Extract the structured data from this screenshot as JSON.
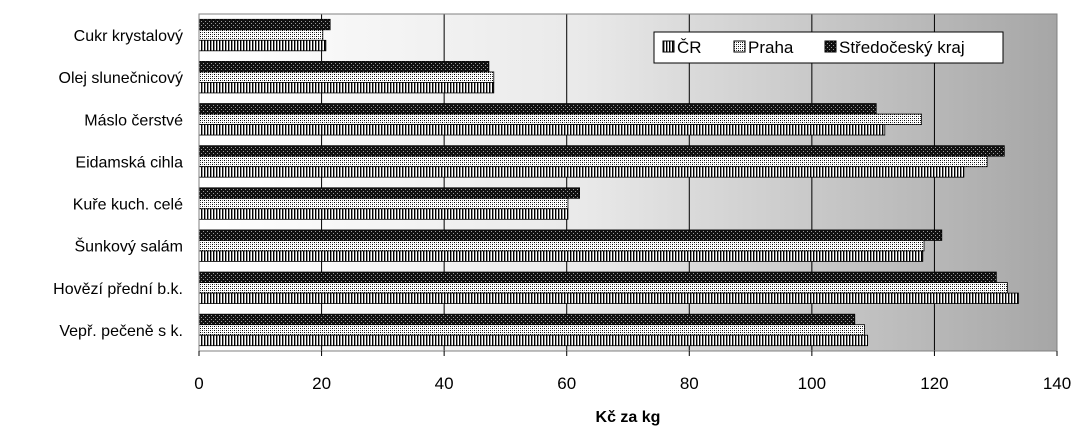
{
  "chart_data": {
    "type": "bar",
    "orientation": "horizontal",
    "categories": [
      "Cukr krystalový",
      "Olej slunečnicový",
      "Máslo čerstvé",
      "Eidamská cihla",
      "Kuře kuch. celé",
      "Šunkový salám",
      "Hovězí přední b.k.",
      "Vepř. pečeně s k."
    ],
    "series": [
      {
        "name": "ČR",
        "pattern": "vertical-stripes",
        "values": [
          20.7,
          48.1,
          111.9,
          124.8,
          60.2,
          118.1,
          133.7,
          109.1
        ]
      },
      {
        "name": "Praha",
        "pattern": "checker",
        "values": [
          20.2,
          48.1,
          117.9,
          128.6,
          60.2,
          118.3,
          131.9,
          108.6
        ]
      },
      {
        "name": "Středočeský kraj",
        "pattern": "dark",
        "values": [
          21.4,
          47.3,
          110.5,
          131.4,
          62.1,
          121.2,
          130.1,
          107.0
        ]
      }
    ],
    "xlabel": "Kč za kg",
    "ylabel": "",
    "xlim": [
      0,
      140
    ],
    "xticks": [
      "0",
      "20",
      "40",
      "60",
      "80",
      "100",
      "120",
      "140"
    ],
    "grid": "vertical",
    "legend_position": "top-right",
    "background": "gradient-white-to-gray"
  }
}
